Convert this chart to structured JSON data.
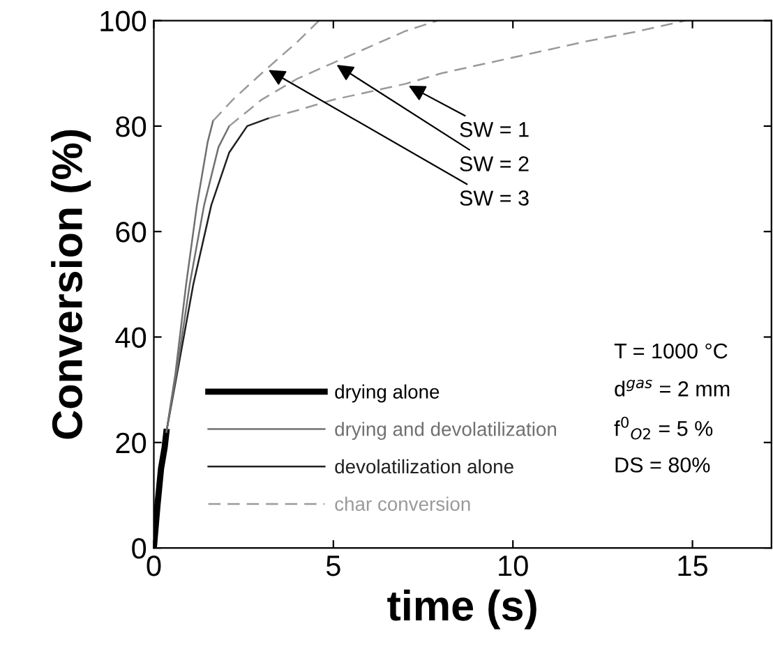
{
  "chart_data": {
    "type": "line",
    "xlabel": "time (s)",
    "ylabel": "Conversion (%)",
    "xlim": [
      0,
      17.2
    ],
    "ylim": [
      0,
      100
    ],
    "xticks": [
      0,
      5,
      10,
      15
    ],
    "yticks": [
      0,
      20,
      40,
      60,
      80,
      100
    ],
    "grid": false,
    "legend": "bottom left",
    "marker": "none",
    "series": [
      {
        "name": "drying alone",
        "color": "#000000",
        "line_style": "solid",
        "x": [
          0,
          0.1,
          0.2,
          0.3,
          0.35
        ],
        "values": [
          0,
          8,
          15,
          19,
          22
        ]
      },
      {
        "name": "drying and devolatilization",
        "color": "#707070",
        "line_style": "solid",
        "x": [
          0.35,
          0.6,
          0.9,
          1.2,
          1.5,
          1.65
        ],
        "values": [
          22,
          33,
          50,
          65,
          77,
          81
        ]
      },
      {
        "name": "devolatilization alone",
        "color": "#202020",
        "line_style": "solid",
        "x": [
          0.35,
          0.7,
          1.1,
          1.6,
          2.1,
          2.6,
          3.2
        ],
        "values": [
          22,
          35,
          50,
          65,
          75,
          80,
          81.5
        ]
      },
      {
        "name": "char conversion",
        "color": "#9a9a9a",
        "line_style": "dashed",
        "x": [
          1.65,
          2.2,
          3,
          3.5,
          4,
          4.6
        ],
        "values": [
          81,
          85,
          90,
          93,
          96,
          100
        ]
      },
      {
        "color": "#707070",
        "line_style": "solid",
        "x": [
          0.35,
          0.65,
          1,
          1.4,
          1.8,
          2.1
        ],
        "values": [
          22,
          34,
          50,
          65,
          76,
          80
        ]
      },
      {
        "color": "#9a9a9a",
        "line_style": "dashed",
        "x": [
          2.1,
          3,
          4,
          5,
          6,
          7,
          7.9
        ],
        "values": [
          80,
          85,
          89,
          92,
          95,
          98,
          100
        ]
      },
      {
        "color": "#9a9a9a",
        "line_style": "dashed",
        "x": [
          3.2,
          4,
          5,
          6,
          7,
          8,
          10,
          12,
          13.5,
          14.8
        ],
        "values": [
          81.5,
          83,
          85,
          86.5,
          88,
          90,
          93,
          96,
          98,
          100
        ]
      }
    ],
    "annotations": [
      {
        "text": "SW = 1",
        "x": 7,
        "y": 88
      },
      {
        "text": "SW = 2",
        "x": 5,
        "y": 92
      },
      {
        "text": "SW = 3",
        "x": 3.1,
        "y": 91
      },
      "T = 1000 °C",
      "d$^{gas}$ = 2 mm",
      "f$^{0}$$_{O2}$ = 5 %",
      "DS = 80%"
    ]
  }
}
